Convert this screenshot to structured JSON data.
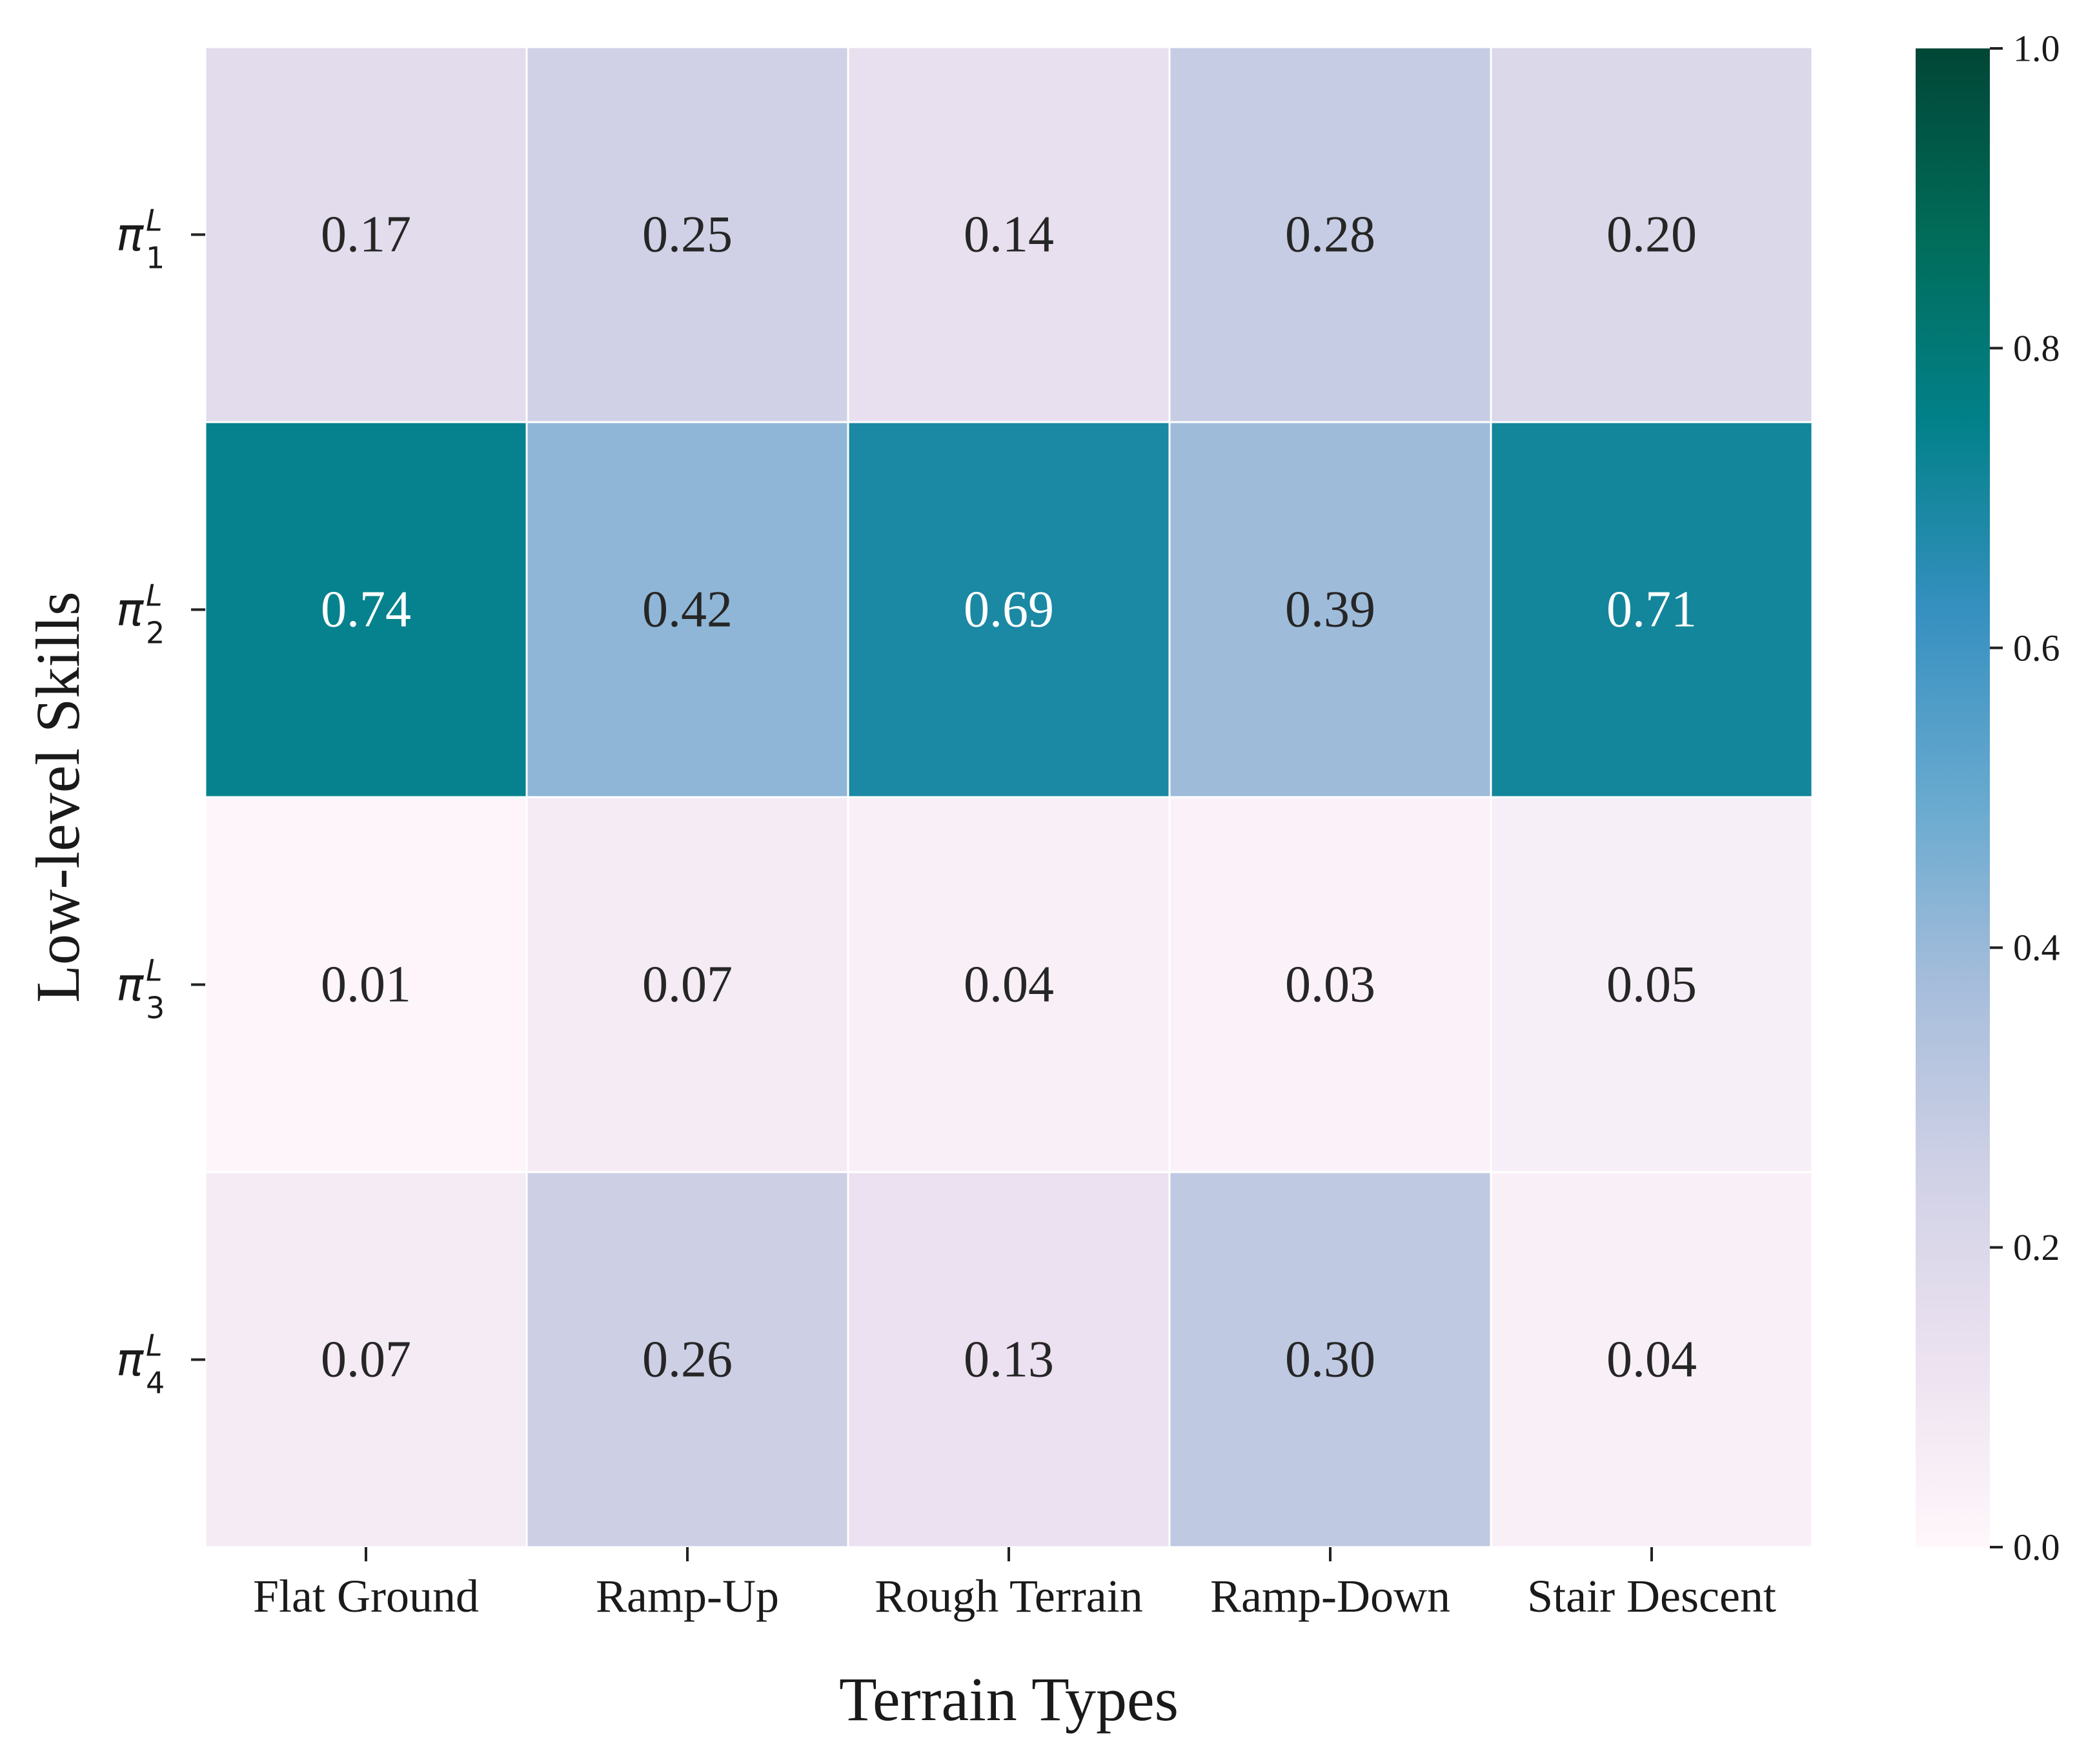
{
  "chart_data": {
    "type": "heatmap",
    "title": "",
    "xlabel": "Terrain Types",
    "ylabel": "Low-level Skills",
    "x_categories": [
      "Flat Ground",
      "Ramp-Up",
      "Rough Terrain",
      "Ramp-Down",
      "Stair Descent"
    ],
    "y_categories": [
      {
        "symbol": "π",
        "superscript": "L",
        "subscript": "1"
      },
      {
        "symbol": "π",
        "superscript": "L",
        "subscript": "2"
      },
      {
        "symbol": "π",
        "superscript": "L",
        "subscript": "3"
      },
      {
        "symbol": "π",
        "superscript": "L",
        "subscript": "4"
      }
    ],
    "values": [
      [
        0.17,
        0.25,
        0.14,
        0.28,
        0.2
      ],
      [
        0.74,
        0.42,
        0.69,
        0.39,
        0.71
      ],
      [
        0.01,
        0.07,
        0.04,
        0.03,
        0.05
      ],
      [
        0.07,
        0.26,
        0.13,
        0.3,
        0.04
      ]
    ],
    "cell_labels": [
      [
        "0.17",
        "0.25",
        "0.14",
        "0.28",
        "0.20"
      ],
      [
        "0.74",
        "0.42",
        "0.69",
        "0.39",
        "0.71"
      ],
      [
        "0.01",
        "0.07",
        "0.04",
        "0.03",
        "0.05"
      ],
      [
        "0.07",
        "0.26",
        "0.13",
        "0.30",
        "0.04"
      ]
    ],
    "colorbar": {
      "range": [
        0.0,
        1.0
      ],
      "tick_values": [
        0.0,
        0.2,
        0.4,
        0.6,
        0.8,
        1.0
      ],
      "tick_labels": [
        "0.0",
        "0.2",
        "0.4",
        "0.6",
        "0.8",
        "1.0"
      ],
      "colormap": "PuBuGn",
      "colormap_stops": [
        "#fff7fb",
        "#ece2f0",
        "#d0d1e6",
        "#a6bddb",
        "#67a9cf",
        "#3690c0",
        "#02818a",
        "#016c59",
        "#014636"
      ]
    },
    "grid": false,
    "cell_border_color": "#ffffff",
    "dark_text_color": "#262626",
    "light_text_color": "#ffffff"
  }
}
